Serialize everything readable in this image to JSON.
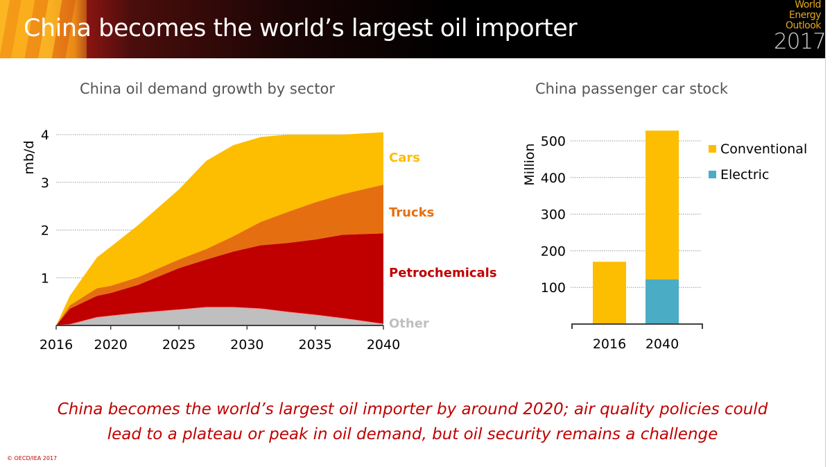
{
  "header": {
    "title": "China becomes the world’s largest oil importer",
    "logo": {
      "line1": "World",
      "line2": "Energy",
      "line3": "Outlook",
      "year": "2017"
    }
  },
  "left_chart_title": "China oil demand growth by sector",
  "right_chart_title": "China passenger car stock",
  "conclusion": {
    "line1": "China becomes the world’s largest oil importer by around 2020; air quality policies could",
    "line2": "lead to a plateau or peak in oil demand, but oil security remains a challenge"
  },
  "copyright": "© OECD/IEA 2017",
  "colors": {
    "cars": "#fdbd00",
    "trucks": "#e56f10",
    "petrochemicals": "#c00000",
    "other": "#bfbfbf",
    "conventional": "#fdbd00",
    "electric": "#4bacc6",
    "accent_text": "#c00000"
  },
  "chart_data": [
    {
      "type": "area",
      "title": "China oil demand growth by sector",
      "xlabel": "",
      "ylabel": "mb/d",
      "ylim": [
        0,
        4
      ],
      "yticks": [
        "1",
        "2",
        "3",
        "4"
      ],
      "xticks": [
        "2016",
        "2020",
        "2025",
        "2030",
        "2035",
        "2040"
      ],
      "grid": true,
      "stacked": true,
      "x": [
        2016,
        2017,
        2019,
        2020,
        2022,
        2025,
        2027,
        2029,
        2031,
        2033,
        2035,
        2037,
        2040
      ],
      "series": [
        {
          "name": "Other",
          "values": [
            0,
            0.02,
            0.17,
            0.2,
            0.26,
            0.33,
            0.38,
            0.38,
            0.35,
            0.28,
            0.22,
            0.15,
            0.03
          ]
        },
        {
          "name": "Petrochemicals",
          "values": [
            0,
            0.33,
            0.45,
            0.48,
            0.59,
            0.87,
            1.0,
            1.17,
            1.33,
            1.45,
            1.58,
            1.75,
            1.9
          ]
        },
        {
          "name": "Trucks",
          "values": [
            0,
            0.07,
            0.16,
            0.15,
            0.16,
            0.18,
            0.22,
            0.32,
            0.49,
            0.65,
            0.78,
            0.85,
            1.02
          ]
        },
        {
          "name": "Cars",
          "values": [
            0,
            0.2,
            0.65,
            0.82,
            1.09,
            1.47,
            1.85,
            1.91,
            1.78,
            1.62,
            1.42,
            1.25,
            1.1
          ]
        }
      ],
      "legend": [
        "Cars",
        "Trucks",
        "Petrochemicals",
        "Other"
      ],
      "legend_position": "right (inline labels)"
    },
    {
      "type": "bar",
      "stacked": true,
      "title": "China passenger car stock",
      "xlabel": "",
      "ylabel": "Million",
      "ylim": [
        0,
        500
      ],
      "yticks": [
        "100",
        "200",
        "300",
        "400",
        "500"
      ],
      "categories": [
        "2016",
        "2040"
      ],
      "series": [
        {
          "name": "Electric",
          "values": [
            2,
            122
          ]
        },
        {
          "name": "Conventional",
          "values": [
            168,
            406
          ]
        }
      ],
      "legend": [
        "Conventional",
        "Electric"
      ],
      "legend_position": "right",
      "grid": true
    }
  ]
}
